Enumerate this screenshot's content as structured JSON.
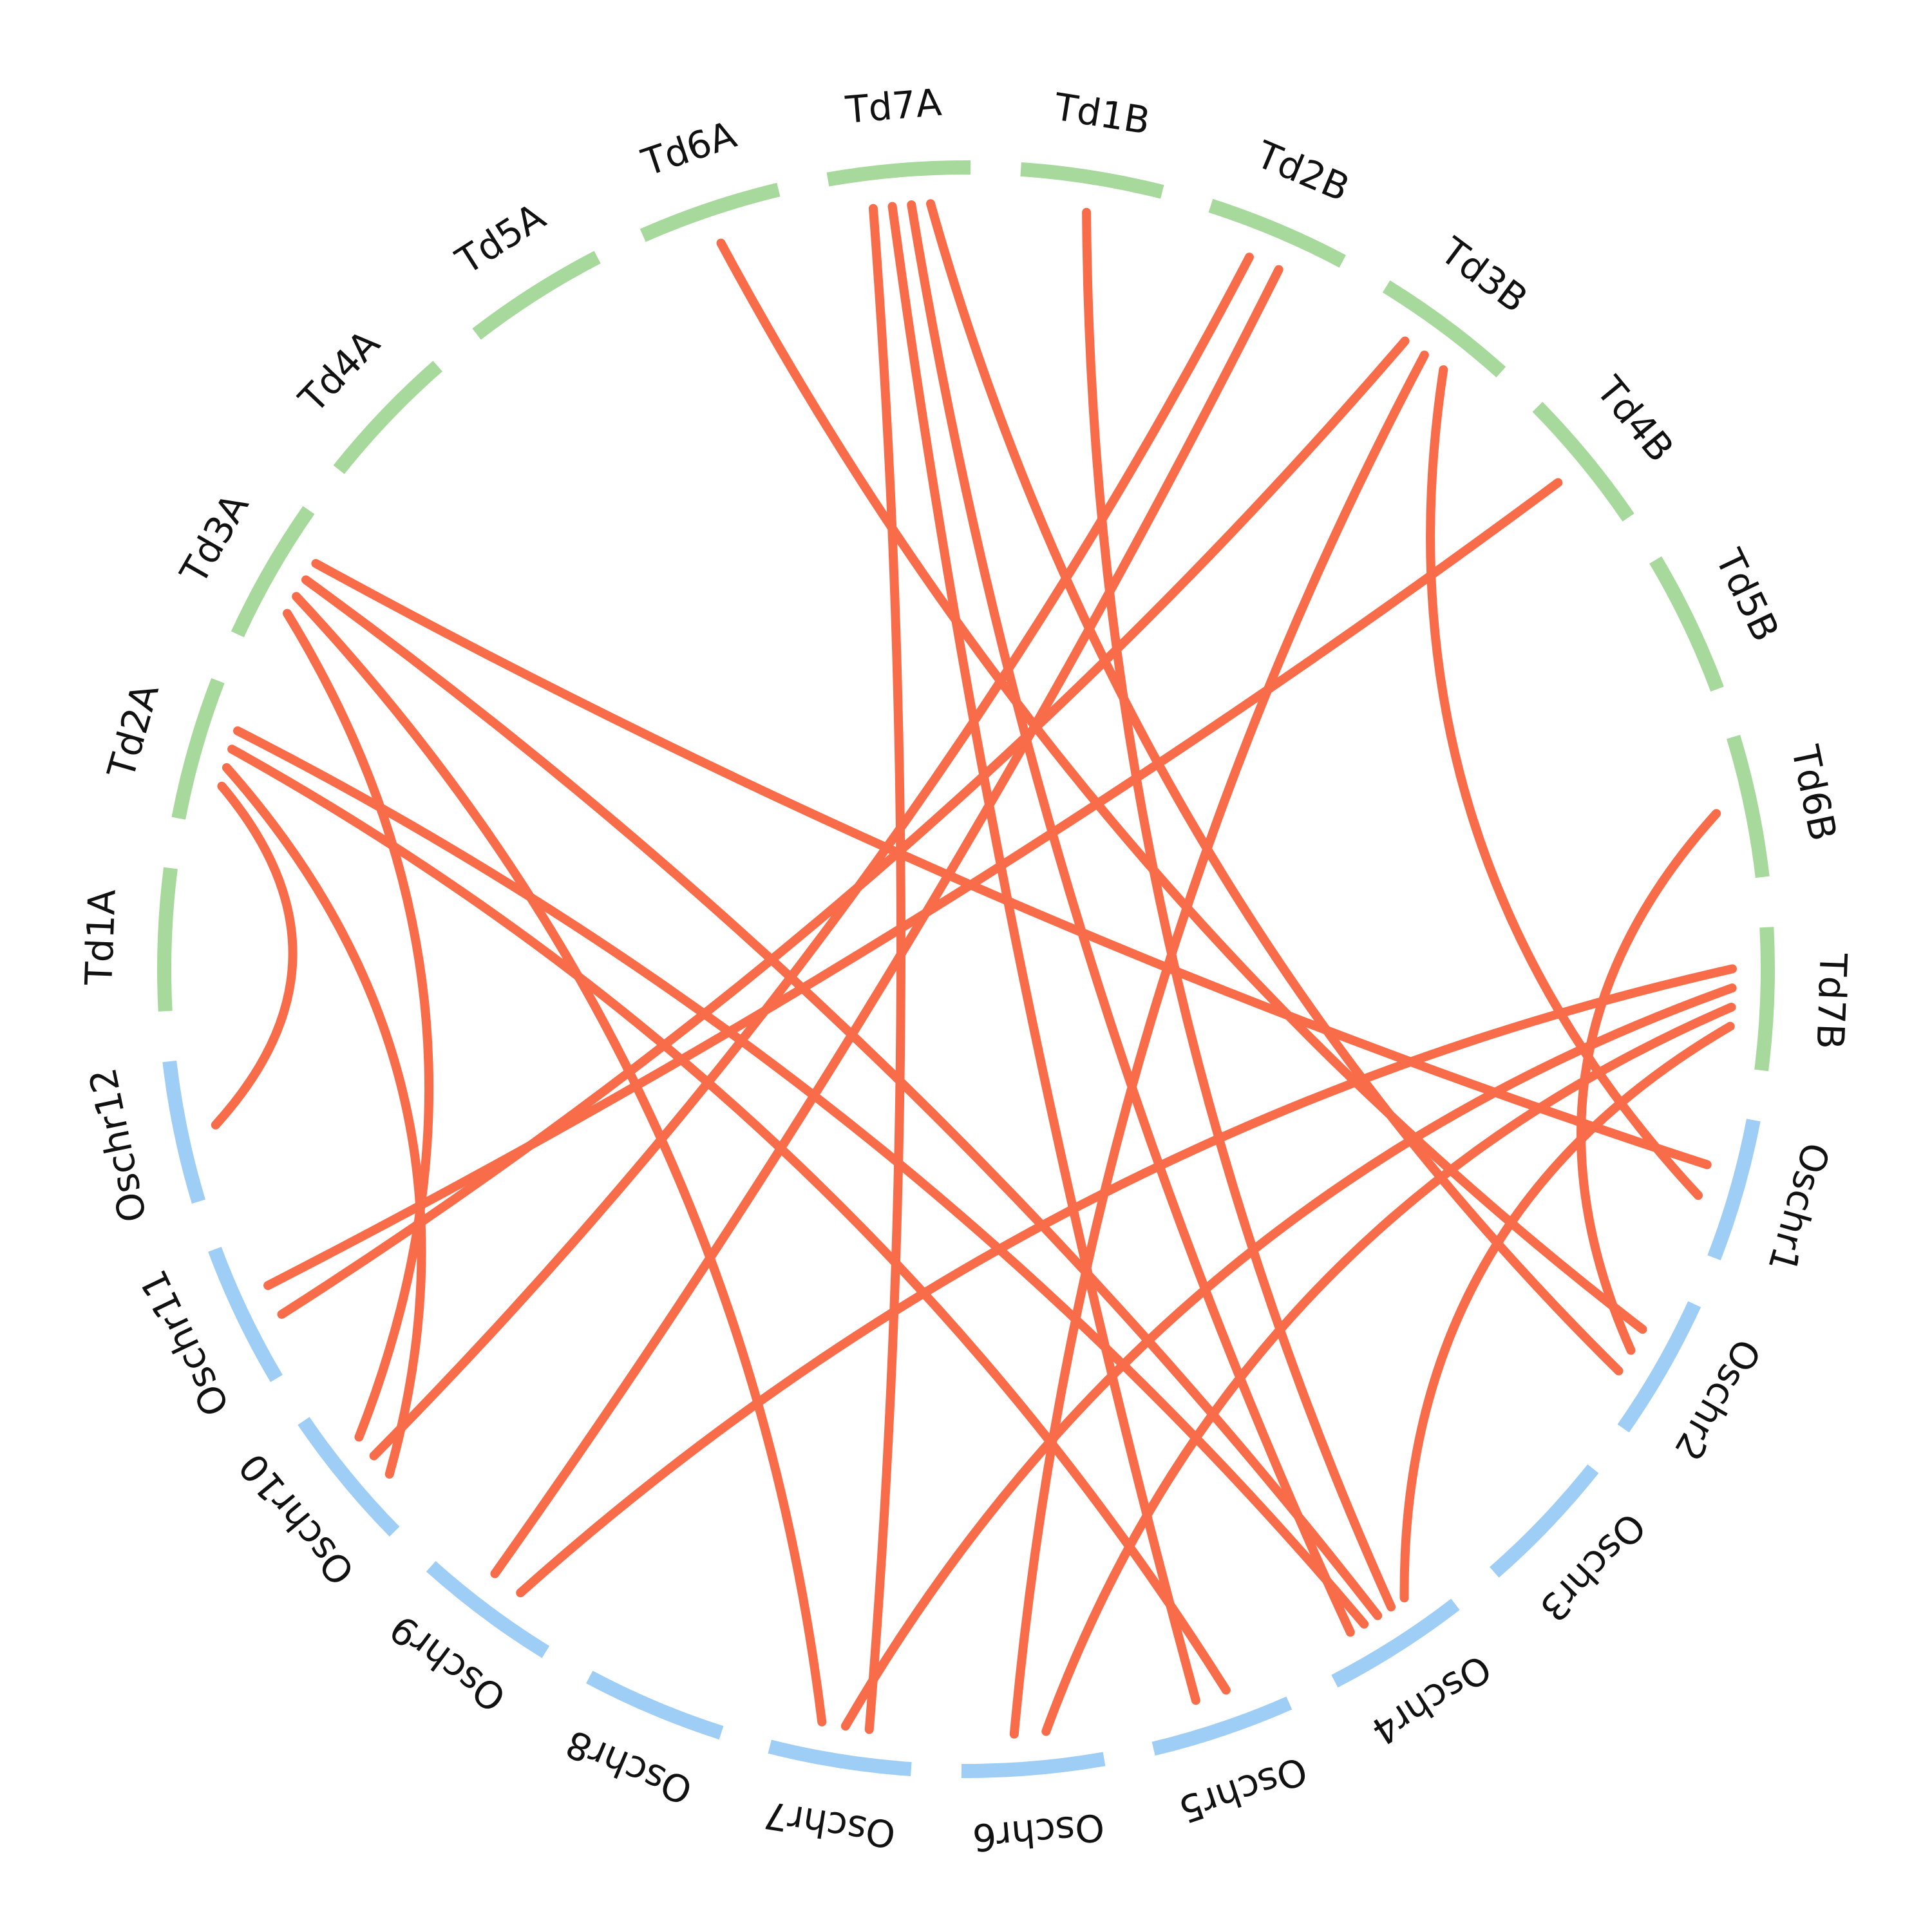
{
  "colors": {
    "rice": "#9ecdf6",
    "wheat": "#a6d99b",
    "link": "#f86c4a",
    "text": "#111111"
  },
  "segments": [
    {
      "id": "Td1A",
      "label": "Td1A",
      "group": "wheat"
    },
    {
      "id": "Td2A",
      "label": "Td2A",
      "group": "wheat"
    },
    {
      "id": "Td3A",
      "label": "Td3A",
      "group": "wheat"
    },
    {
      "id": "Td4A",
      "label": "Td4A",
      "group": "wheat"
    },
    {
      "id": "Td5A",
      "label": "Td5A",
      "group": "wheat"
    },
    {
      "id": "Td6A",
      "label": "Td6A",
      "group": "wheat"
    },
    {
      "id": "Td7A",
      "label": "Td7A",
      "group": "wheat"
    },
    {
      "id": "Td1B",
      "label": "Td1B",
      "group": "wheat"
    },
    {
      "id": "Td2B",
      "label": "Td2B",
      "group": "wheat"
    },
    {
      "id": "Td3B",
      "label": "Td3B",
      "group": "wheat"
    },
    {
      "id": "Td4B",
      "label": "Td4B",
      "group": "wheat"
    },
    {
      "id": "Td5B",
      "label": "Td5B",
      "group": "wheat"
    },
    {
      "id": "Td6B",
      "label": "Td6B",
      "group": "wheat"
    },
    {
      "id": "Td7B",
      "label": "Td7B",
      "group": "wheat"
    },
    {
      "id": "Oschr1",
      "label": "Oschr1",
      "group": "rice"
    },
    {
      "id": "Oschr2",
      "label": "Oschr2",
      "group": "rice"
    },
    {
      "id": "Oschr3",
      "label": "Oschr3",
      "group": "rice"
    },
    {
      "id": "Oschr4",
      "label": "Oschr4",
      "group": "rice"
    },
    {
      "id": "Oschr5",
      "label": "Oschr5",
      "group": "rice"
    },
    {
      "id": "Oschr6",
      "label": "Oschr6",
      "group": "rice"
    },
    {
      "id": "Oschr7",
      "label": "Oschr7",
      "group": "rice"
    },
    {
      "id": "Oschr8",
      "label": "Oschr8",
      "group": "rice"
    },
    {
      "id": "Oschr9",
      "label": "Oschr9",
      "group": "rice"
    },
    {
      "id": "Oschr10",
      "label": "Oschr10",
      "group": "rice"
    },
    {
      "id": "Oschr11",
      "label": "Oschr11",
      "group": "rice"
    },
    {
      "id": "Oschr12",
      "label": "Oschr12",
      "group": "rice"
    }
  ],
  "links": [
    {
      "from": "Oschr12",
      "to": "Td2A"
    },
    {
      "from": "Oschr11",
      "to": "Td3B"
    },
    {
      "from": "Oschr11",
      "to": "Td4B"
    },
    {
      "from": "Oschr10",
      "to": "Td2A"
    },
    {
      "from": "Oschr10",
      "to": "Td2B"
    },
    {
      "from": "Oschr10",
      "to": "Td3A"
    },
    {
      "from": "Oschr9",
      "to": "Td7B"
    },
    {
      "from": "Oschr9",
      "to": "Td2B"
    },
    {
      "from": "Oschr7",
      "to": "Td7A"
    },
    {
      "from": "Oschr7",
      "to": "Td7B"
    },
    {
      "from": "Oschr7",
      "to": "Td3A"
    },
    {
      "from": "Oschr6",
      "to": "Td7B"
    },
    {
      "from": "Oschr6",
      "to": "Td3B"
    },
    {
      "from": "Oschr5",
      "to": "Td2A"
    },
    {
      "from": "Oschr5",
      "to": "Td7A"
    },
    {
      "from": "Oschr4",
      "to": "Td7B"
    },
    {
      "from": "Oschr4",
      "to": "Td1B"
    },
    {
      "from": "Oschr4",
      "to": "Td3A"
    },
    {
      "from": "Oschr4",
      "to": "Td2A"
    },
    {
      "from": "Oschr4",
      "to": "Td7A"
    },
    {
      "from": "Oschr2",
      "to": "Td6A"
    },
    {
      "from": "Oschr2",
      "to": "Td6B"
    },
    {
      "from": "Oschr2",
      "to": "Td7A"
    },
    {
      "from": "Oschr1",
      "to": "Td3A"
    },
    {
      "from": "Oschr1",
      "to": "Td3B"
    }
  ]
}
